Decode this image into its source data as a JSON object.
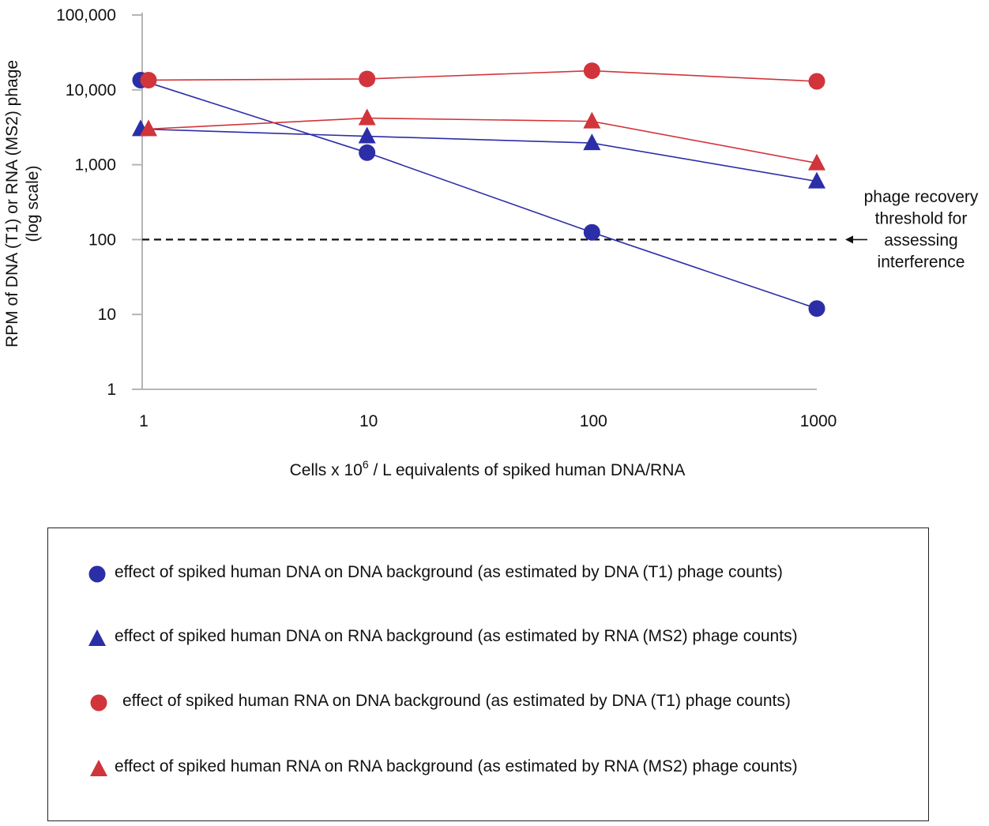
{
  "chart_data": {
    "type": "line",
    "x_scale": "log",
    "y_scale": "log",
    "x": [
      1,
      10,
      100,
      1000
    ],
    "x_tick_labels": [
      "1",
      "10",
      "100",
      "1000"
    ],
    "y_ticks": [
      1,
      10,
      100,
      1000,
      10000,
      100000
    ],
    "y_tick_labels": [
      "1",
      "10",
      "100",
      "1,000",
      "10,000",
      "100,000"
    ],
    "xlim": [
      1,
      1000
    ],
    "ylim": [
      1,
      100000
    ],
    "xlabel_main": "Cells x 10",
    "xlabel_sup": "6",
    "xlabel_rest": " / L equivalents of spiked human DNA/RNA",
    "ylabel_line1": "RPM of DNA (T1) or RNA (MS2) phage",
    "ylabel_line2": "(log scale)",
    "grid": false,
    "threshold": {
      "value": 100,
      "label_lines": [
        "phage recovery",
        "threshold for",
        "assessing",
        "interference"
      ]
    },
    "series": [
      {
        "name": "effect of spiked human DNA on DNA background (as estimated by DNA (T1) phage counts)",
        "marker": "circle",
        "color": "#2b2ea6",
        "values": [
          13500,
          1450,
          125,
          12
        ]
      },
      {
        "name": "effect of spiked human DNA on RNA background (as estimated by RNA (MS2) phage counts)",
        "marker": "triangle",
        "color": "#2b2ea6",
        "values": [
          3000,
          2400,
          1950,
          600
        ]
      },
      {
        "name": "effect of spiked human RNA on DNA background (as estimated by DNA (T1) phage counts)",
        "marker": "circle",
        "color": "#d1343a",
        "values": [
          13500,
          14000,
          18000,
          13000
        ]
      },
      {
        "name": "effect of spiked human RNA on RNA background (as estimated by RNA (MS2) phage counts)",
        "marker": "triangle",
        "color": "#d1343a",
        "values": [
          3000,
          4200,
          3800,
          1050
        ]
      }
    ]
  }
}
